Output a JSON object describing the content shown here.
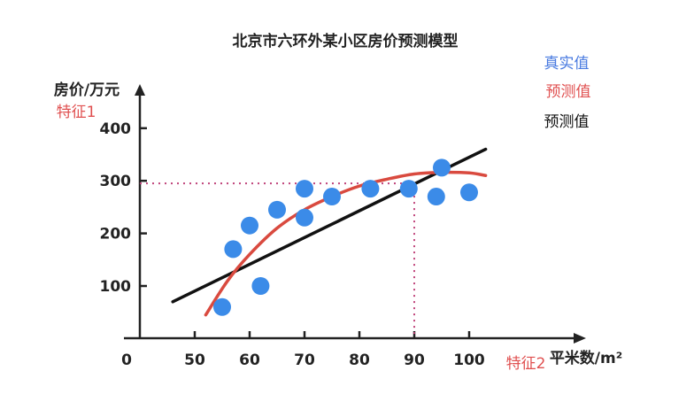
{
  "chart_data": {
    "type": "scatter",
    "title": "北京市六环外某小区房价预测模型",
    "ylabel": "房价/万元",
    "xlabel": "平米数/m²",
    "origin_label": "0",
    "xlim": [
      40,
      105
    ],
    "ylim": [
      0,
      430
    ],
    "xticks": [
      "50",
      "60",
      "70",
      "80",
      "90",
      "100"
    ],
    "yticks": [
      "100",
      "200",
      "300",
      "400"
    ],
    "points": [
      {
        "x": 55,
        "y": 60
      },
      {
        "x": 57,
        "y": 170
      },
      {
        "x": 60,
        "y": 215
      },
      {
        "x": 62,
        "y": 100
      },
      {
        "x": 65,
        "y": 245
      },
      {
        "x": 70,
        "y": 285
      },
      {
        "x": 70,
        "y": 230
      },
      {
        "x": 75,
        "y": 270
      },
      {
        "x": 82,
        "y": 285
      },
      {
        "x": 89,
        "y": 285
      },
      {
        "x": 94,
        "y": 270
      },
      {
        "x": 95,
        "y": 325
      },
      {
        "x": 100,
        "y": 278
      }
    ],
    "linear_fit": [
      {
        "x": 46,
        "y": 70
      },
      {
        "x": 103,
        "y": 360
      }
    ],
    "curve_fit": [
      {
        "x": 52,
        "y": 45
      },
      {
        "x": 56,
        "y": 110
      },
      {
        "x": 60,
        "y": 160
      },
      {
        "x": 65,
        "y": 210
      },
      {
        "x": 70,
        "y": 245
      },
      {
        "x": 75,
        "y": 270
      },
      {
        "x": 80,
        "y": 290
      },
      {
        "x": 85,
        "y": 303
      },
      {
        "x": 90,
        "y": 313
      },
      {
        "x": 95,
        "y": 316
      },
      {
        "x": 100,
        "y": 315
      },
      {
        "x": 103,
        "y": 310
      }
    ],
    "reference": {
      "x": 90,
      "y": 295
    },
    "legend": [
      {
        "label": "真实值",
        "color": "#4a7be0"
      },
      {
        "label": "预测值",
        "color": "#e05050"
      },
      {
        "label": "预测值",
        "color": "#111111"
      }
    ],
    "annotations": {
      "feature1": "特征1",
      "feature2": "特征2"
    },
    "colors": {
      "points": "#3b8be8",
      "curve": "#d94a3f",
      "line": "#111111",
      "reference": "#c0437a",
      "axis": "#222222"
    }
  }
}
